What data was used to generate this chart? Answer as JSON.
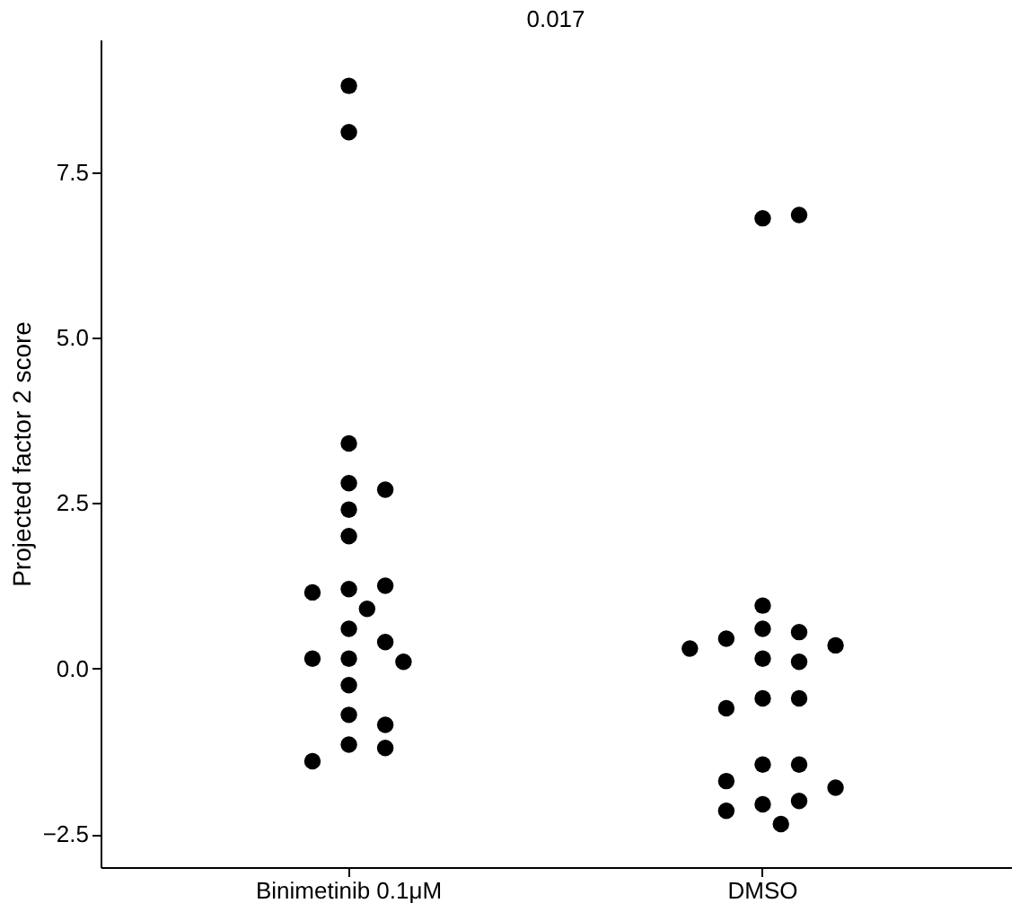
{
  "chart_data": {
    "type": "scatter",
    "categories": [
      "Binimetinib 0.1μM",
      "DMSO"
    ],
    "ylabel": "Projected factor 2 score",
    "ylim": [
      -3,
      9.5
    ],
    "yticks": [
      {
        "value": -2.5,
        "label": "−2.5"
      },
      {
        "value": 0,
        "label": "0.0"
      },
      {
        "value": 2.5,
        "label": "2.5"
      },
      {
        "value": 5,
        "label": "5.0"
      },
      {
        "value": 7.5,
        "label": "7.5"
      }
    ],
    "series": [
      {
        "color": "#000000",
        "x": [
          "Binimetinib 0.1μM",
          "Binimetinib 0.1μM",
          "Binimetinib 0.1μM",
          "Binimetinib 0.1μM",
          "Binimetinib 0.1μM",
          "Binimetinib 0.1μM",
          "Binimetinib 0.1μM",
          "Binimetinib 0.1μM",
          "Binimetinib 0.1μM",
          "Binimetinib 0.1μM",
          "Binimetinib 0.1μM",
          "Binimetinib 0.1μM",
          "Binimetinib 0.1μM",
          "Binimetinib 0.1μM",
          "Binimetinib 0.1μM",
          "Binimetinib 0.1μM",
          "Binimetinib 0.1μM",
          "Binimetinib 0.1μM",
          "Binimetinib 0.1μM",
          "Binimetinib 0.1μM",
          "Binimetinib 0.1μM",
          "Binimetinib 0.1μM"
        ],
        "values": [
          8.8,
          8.1,
          3.4,
          2.8,
          2.7,
          2.4,
          2.0,
          1.2,
          1.25,
          1.15,
          0.9,
          0.6,
          0.4,
          0.15,
          0.15,
          0.1,
          -0.25,
          -0.7,
          -0.85,
          -1.15,
          -1.2,
          -1.4
        ]
      },
      {
        "color": "#000000",
        "x": [
          "DMSO",
          "DMSO",
          "DMSO",
          "DMSO",
          "DMSO",
          "DMSO",
          "DMSO",
          "DMSO",
          "DMSO",
          "DMSO",
          "DMSO",
          "DMSO",
          "DMSO",
          "DMSO",
          "DMSO",
          "DMSO",
          "DMSO",
          "DMSO",
          "DMSO",
          "DMSO",
          "DMSO"
        ],
        "values": [
          6.8,
          6.85,
          0.95,
          0.6,
          0.55,
          0.45,
          0.35,
          0.3,
          0.15,
          0.1,
          -0.45,
          -0.45,
          -0.6,
          -1.45,
          -1.45,
          -1.7,
          -2.05,
          -2.0,
          -1.8,
          -2.15,
          -2.35
        ]
      }
    ],
    "annotations": [
      "0.017"
    ],
    "marker": "circle",
    "grid": false,
    "legend": false
  }
}
